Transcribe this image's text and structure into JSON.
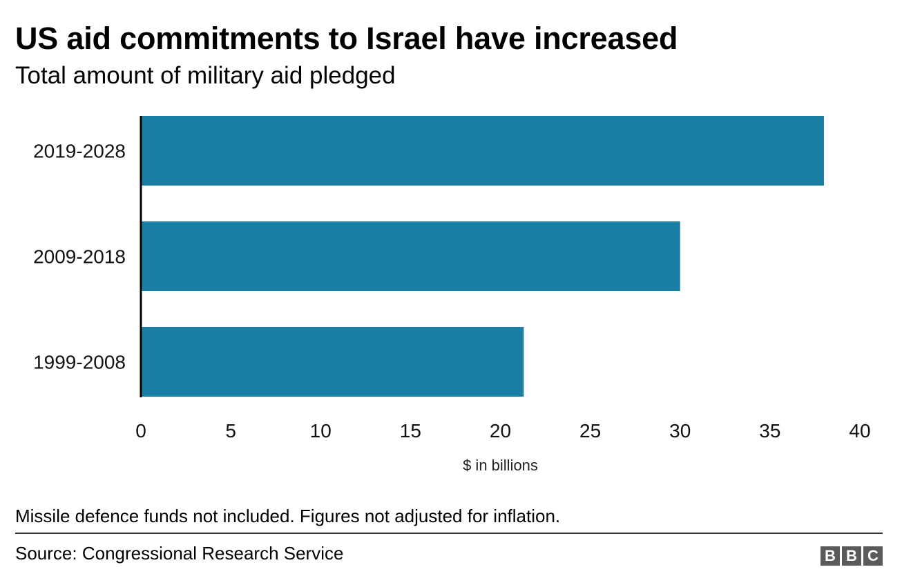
{
  "title": "US aid commitments to Israel have increased",
  "subtitle": "Total amount of military aid pledged",
  "chart_data": {
    "type": "bar",
    "orientation": "horizontal",
    "categories": [
      "2019-2028",
      "2009-2018",
      "1999-2008"
    ],
    "values": [
      38,
      30,
      21.3
    ],
    "xlabel": "$ in billions",
    "ylabel": "",
    "xlim": [
      0,
      40
    ],
    "xticks": [
      "0",
      "5",
      "10",
      "15",
      "20",
      "25",
      "30",
      "35",
      "40"
    ],
    "grid": false,
    "bar_color": "#1a7fa3",
    "axis_color": "#000000"
  },
  "footnote": "Missile defence funds not included. Figures not adjusted for inflation.",
  "source": "Source: Congressional Research Service",
  "logo": [
    "B",
    "B",
    "C"
  ]
}
